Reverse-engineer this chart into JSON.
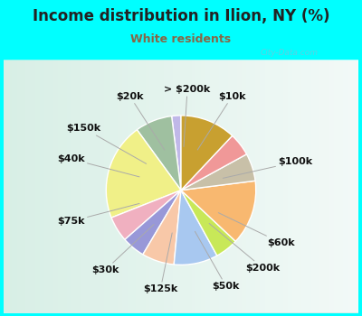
{
  "title": "Income distribution in Ilion, NY (%)",
  "subtitle": "White residents",
  "background_color": "#00FFFF",
  "chart_bg": "#d8efe8",
  "labels": [
    "> $200k",
    "$10k",
    "$100k",
    "$60k",
    "$200k",
    "$50k",
    "$125k",
    "$30k",
    "$75k",
    "$40k",
    "$150k",
    "$20k"
  ],
  "values": [
    2.0,
    8.0,
    21.0,
    5.5,
    5.0,
    7.0,
    9.5,
    5.0,
    14.0,
    6.0,
    5.0,
    12.0
  ],
  "colors": [
    "#c0b8e8",
    "#9fc0a0",
    "#f0f088",
    "#f0b0c0",
    "#9898d8",
    "#f8c8a8",
    "#a8c8f0",
    "#c8e858",
    "#f8b870",
    "#c8c0a8",
    "#f09898",
    "#c8a030"
  ],
  "startangle": 90,
  "label_fontsize": 8,
  "title_fontsize": 12,
  "subtitle_fontsize": 9,
  "subtitle_color": "#886644",
  "watermark": "City-Data.com",
  "wedge_lw": 1.0,
  "wedge_ec": "white"
}
